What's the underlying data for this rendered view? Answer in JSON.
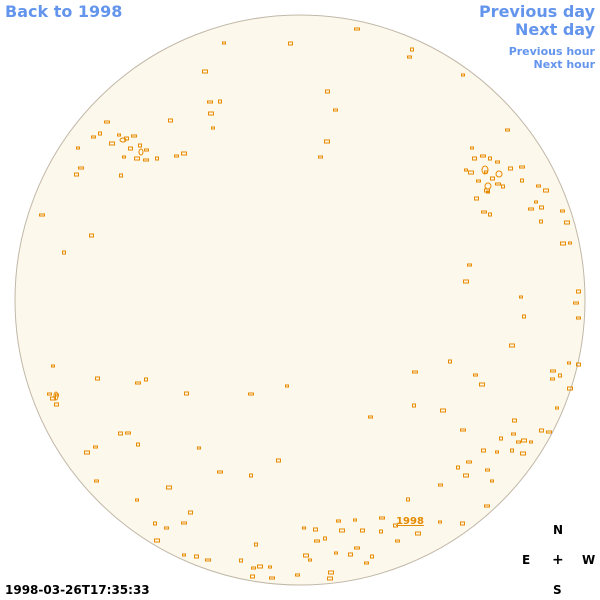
{
  "nav": {
    "back": "Back to 1998",
    "previous_day": "Previous day",
    "next_day": "Next day",
    "previous_hour": "Previous hour",
    "next_hour": "Next hour"
  },
  "disk": {
    "label": "1998",
    "fill_color": "#fdf8ec",
    "outline_color": "#c0b8a8",
    "region_color": "#e68a00"
  },
  "compass": {
    "n": "N",
    "e": "E",
    "center": "+",
    "w": "W",
    "s": "S"
  },
  "timestamp": "1998-03-26T17:35:33",
  "colors": {
    "link": "#6495ed",
    "text": "#000000"
  }
}
